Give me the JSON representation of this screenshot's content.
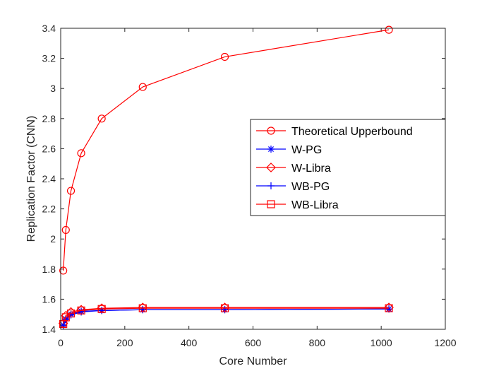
{
  "chart_data": {
    "type": "line",
    "title": "",
    "xlabel": "Core Number",
    "ylabel": "Replication Factor (CNN)",
    "xlim": [
      0,
      1200
    ],
    "ylim": [
      1.4,
      3.4
    ],
    "xticks": [
      0,
      200,
      400,
      600,
      800,
      1000,
      1200
    ],
    "yticks": [
      1.4,
      1.6,
      1.8,
      2,
      2.2,
      2.4,
      2.6,
      2.8,
      3,
      3.2,
      3.4
    ],
    "grid": false,
    "legend_position": "right",
    "series": [
      {
        "name": "Theoretical Upperbound",
        "color": "#ff0000",
        "marker": "circle",
        "x": [
          8,
          16,
          32,
          64,
          128,
          256,
          512,
          1024
        ],
        "y": [
          1.79,
          2.06,
          2.32,
          2.57,
          2.8,
          3.01,
          3.21,
          3.39
        ]
      },
      {
        "name": "W-PG",
        "color": "#0000ff",
        "marker": "asterisk",
        "x": [
          8,
          16,
          32,
          64,
          128,
          256,
          512,
          1024
        ],
        "y": [
          1.43,
          1.47,
          1.5,
          1.52,
          1.525,
          1.53,
          1.53,
          1.535
        ]
      },
      {
        "name": "W-Libra",
        "color": "#ff0000",
        "marker": "diamond",
        "x": [
          8,
          16,
          32,
          64,
          128,
          256,
          512,
          1024
        ],
        "y": [
          1.44,
          1.49,
          1.515,
          1.53,
          1.54,
          1.545,
          1.545,
          1.545
        ]
      },
      {
        "name": "WB-PG",
        "color": "#0000ff",
        "marker": "plus",
        "x": [
          8,
          16,
          32,
          64,
          128,
          256,
          512,
          1024
        ],
        "y": [
          1.425,
          1.465,
          1.495,
          1.515,
          1.525,
          1.53,
          1.53,
          1.535
        ]
      },
      {
        "name": "WB-Libra",
        "color": "#ff0000",
        "marker": "square",
        "x": [
          8,
          16,
          32,
          64,
          128,
          256,
          512,
          1024
        ],
        "y": [
          1.435,
          1.48,
          1.505,
          1.525,
          1.535,
          1.54,
          1.54,
          1.54
        ]
      }
    ]
  }
}
